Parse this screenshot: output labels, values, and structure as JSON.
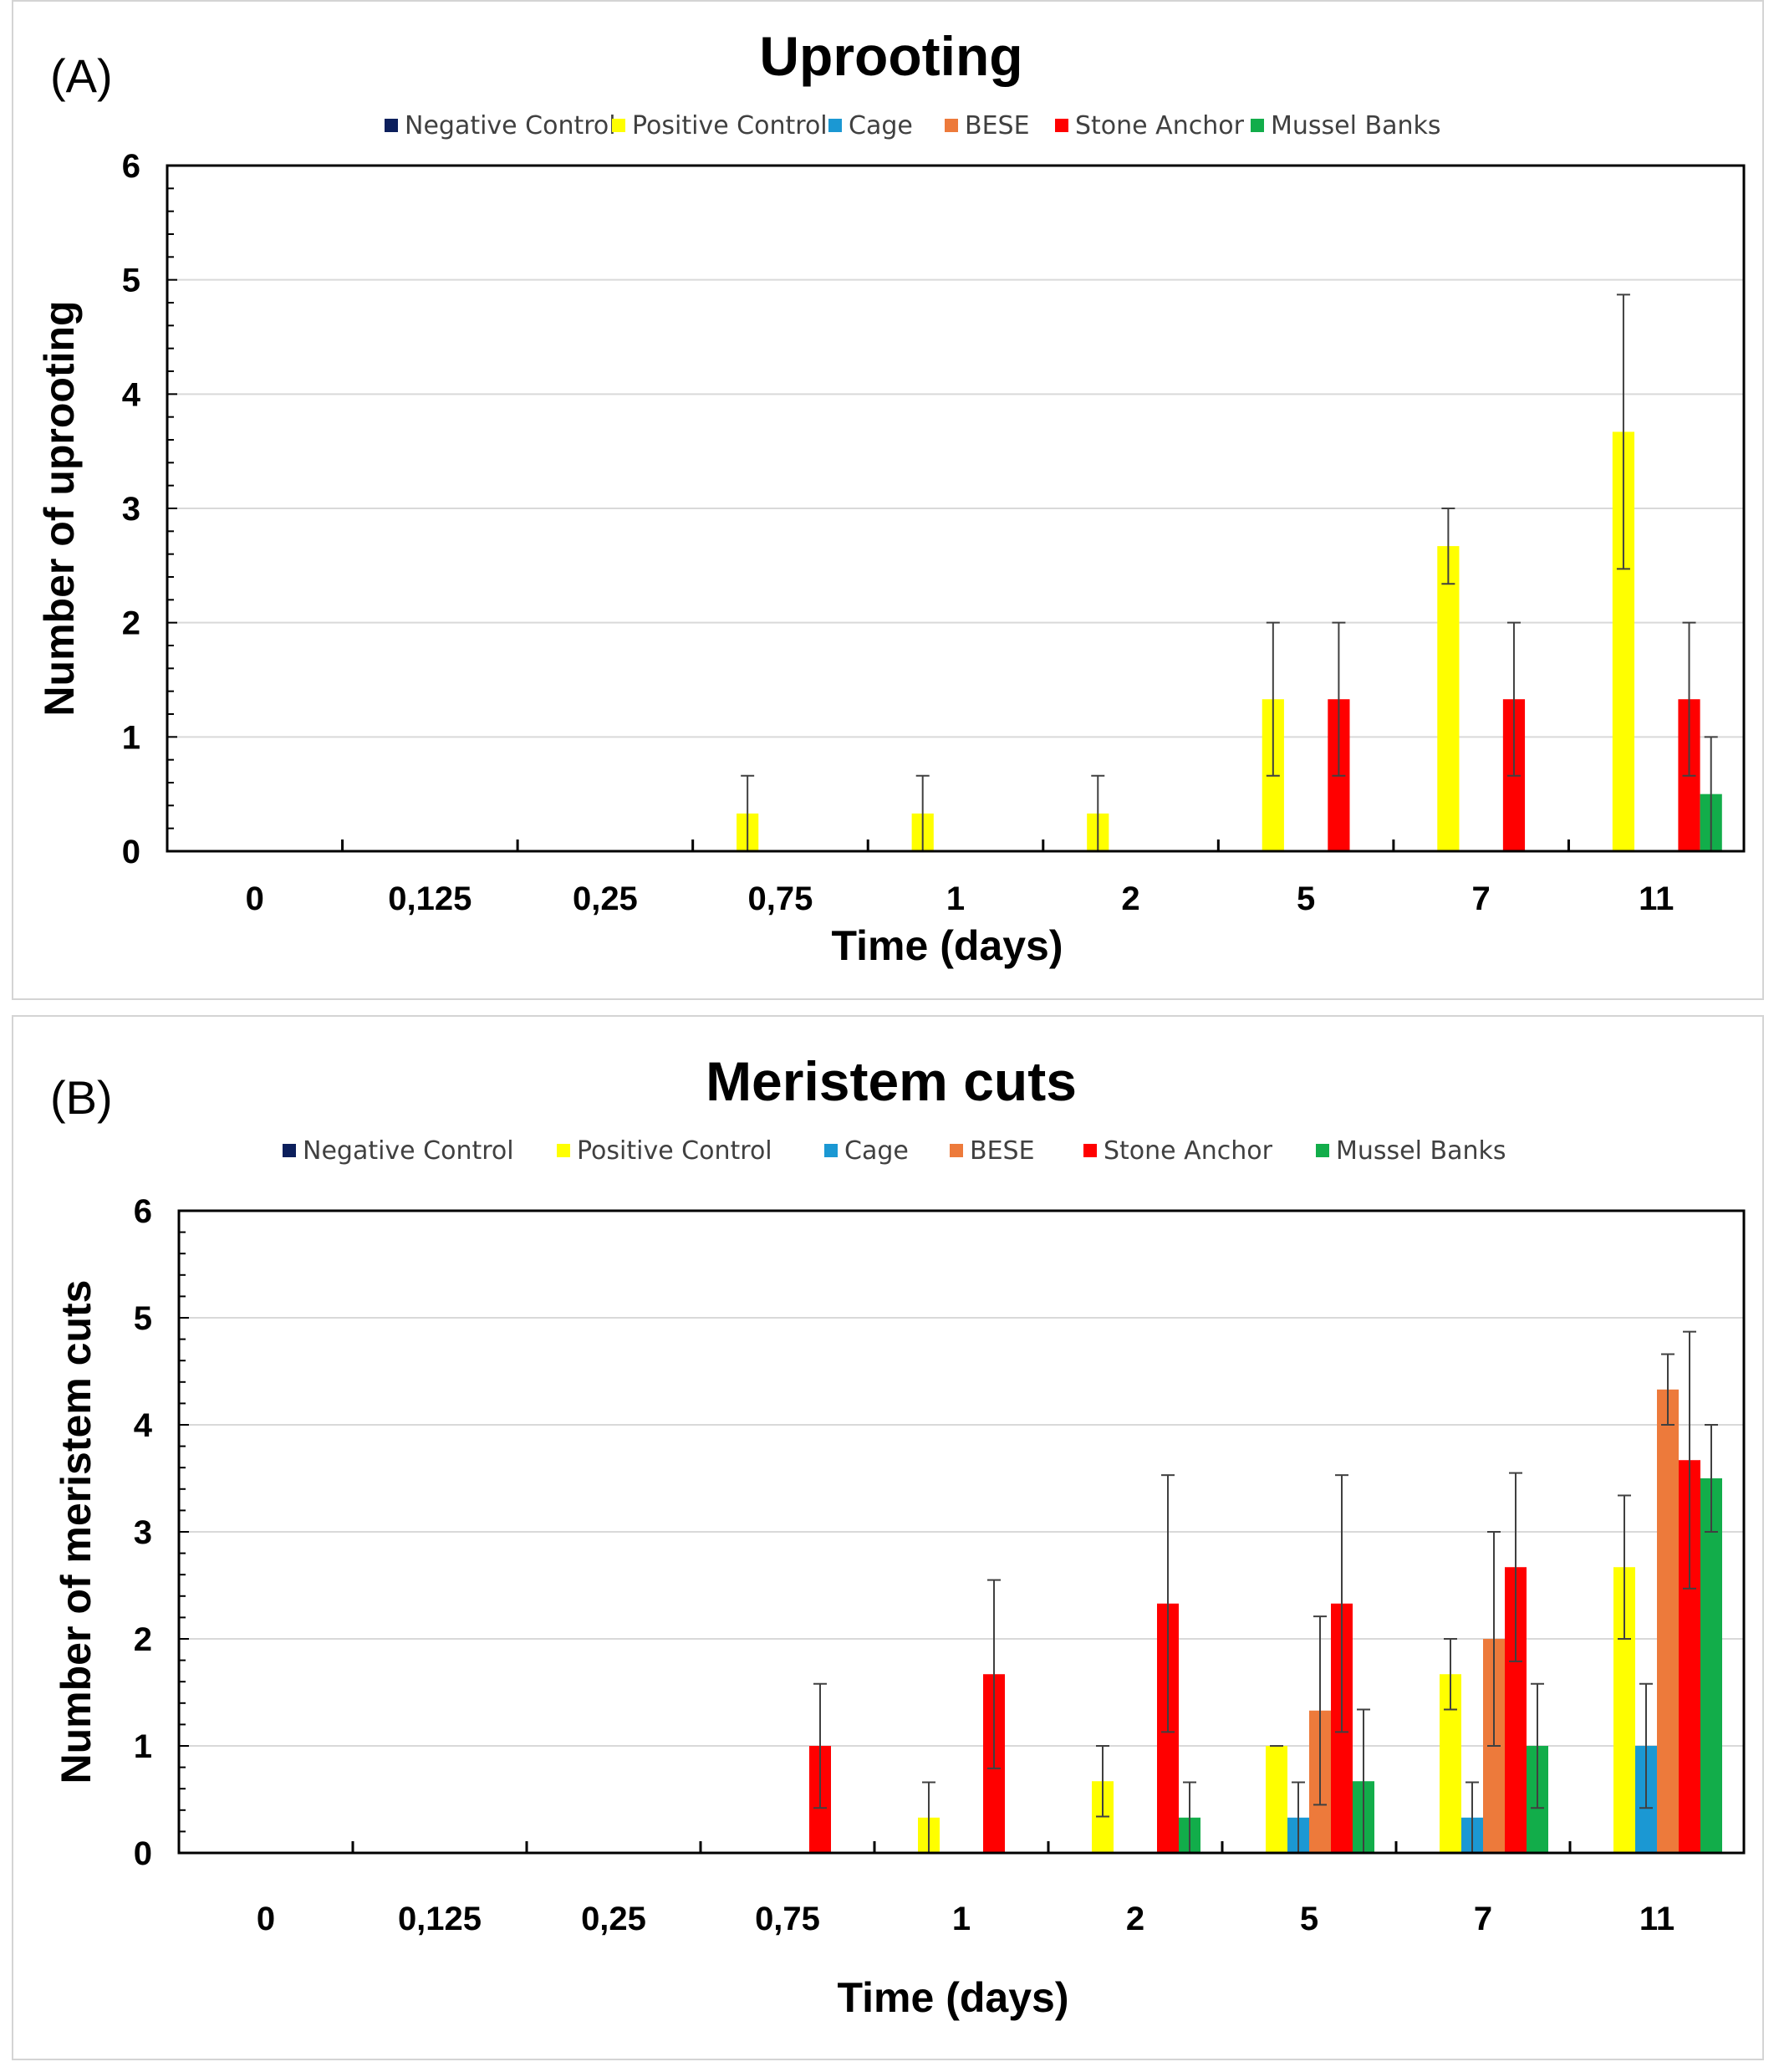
{
  "panels": [
    {
      "panel_label": "(A)",
      "chart_type": "bar"
    },
    {
      "panel_label": "(B)",
      "chart_type": "bar"
    }
  ],
  "chart_data": [
    {
      "type": "bar",
      "panel": "(A)",
      "title": "Uprooting",
      "xlabel": "Time (days)",
      "ylabel": "Number of uprooting",
      "ylim": [
        0,
        6
      ],
      "yticks": [
        "0",
        "1",
        "2",
        "3",
        "4",
        "5",
        "6"
      ],
      "grid": true,
      "legend_position": "top",
      "categories": [
        "0",
        "0,125",
        "0,25",
        "0,75",
        "1",
        "2",
        "5",
        "7",
        "11"
      ],
      "series": [
        {
          "name": "Negative Control",
          "color": "#0c1f5c",
          "values": [
            0,
            0,
            0,
            0,
            0,
            0,
            0,
            0,
            0
          ],
          "errors": [
            0,
            0,
            0,
            0,
            0,
            0,
            0,
            0,
            0
          ]
        },
        {
          "name": "Positive Control",
          "color": "#ffff00",
          "values": [
            0,
            0,
            0,
            0.33,
            0.33,
            0.33,
            1.33,
            2.67,
            3.67
          ],
          "errors": [
            0,
            0,
            0,
            0.33,
            0.33,
            0.33,
            0.67,
            0.33,
            1.2
          ]
        },
        {
          "name": "Cage",
          "color": "#1b98d3",
          "values": [
            0,
            0,
            0,
            0,
            0,
            0,
            0,
            0,
            0
          ],
          "errors": [
            0,
            0,
            0,
            0,
            0,
            0,
            0,
            0,
            0
          ]
        },
        {
          "name": "BESE",
          "color": "#ed7a3b",
          "values": [
            0,
            0,
            0,
            0,
            0,
            0,
            0,
            0,
            0
          ],
          "errors": [
            0,
            0,
            0,
            0,
            0,
            0,
            0,
            0,
            0
          ]
        },
        {
          "name": "Stone Anchor",
          "color": "#ff0000",
          "values": [
            0,
            0,
            0,
            0,
            0,
            0,
            1.33,
            1.33,
            1.33
          ],
          "errors": [
            0,
            0,
            0,
            0,
            0,
            0,
            0.67,
            0.67,
            0.67
          ]
        },
        {
          "name": "Mussel Banks",
          "color": "#12ad4a",
          "values": [
            0,
            0,
            0,
            0,
            0,
            0,
            0,
            0,
            0.5
          ],
          "errors": [
            0,
            0,
            0,
            0,
            0,
            0,
            0,
            0,
            0.5
          ]
        }
      ]
    },
    {
      "type": "bar",
      "panel": "(B)",
      "title": "Meristem cuts",
      "xlabel": "Time (days)",
      "ylabel": "Number of meristem cuts",
      "ylim": [
        0,
        6
      ],
      "yticks": [
        "0",
        "1",
        "2",
        "3",
        "4",
        "5",
        "6"
      ],
      "grid": true,
      "legend_position": "top",
      "categories": [
        "0",
        "0,125",
        "0,25",
        "0,75",
        "1",
        "2",
        "5",
        "7",
        "11"
      ],
      "series": [
        {
          "name": "Negative Control",
          "color": "#0c1f5c",
          "values": [
            0,
            0,
            0,
            0,
            0,
            0,
            0,
            0,
            0
          ],
          "errors": [
            0,
            0,
            0,
            0,
            0,
            0,
            0,
            0,
            0
          ]
        },
        {
          "name": "Positive Control",
          "color": "#ffff00",
          "values": [
            0,
            0,
            0,
            0,
            0.33,
            0.67,
            1,
            1.67,
            2.67
          ],
          "errors": [
            0,
            0,
            0,
            0,
            0.33,
            0.33,
            0,
            0.33,
            0.67
          ]
        },
        {
          "name": "Cage",
          "color": "#1b98d3",
          "values": [
            0,
            0,
            0,
            0,
            0,
            0,
            0.33,
            0.33,
            1
          ],
          "errors": [
            0,
            0,
            0,
            0,
            0,
            0,
            0.33,
            0.33,
            0.58
          ]
        },
        {
          "name": "BESE",
          "color": "#ed7a3b",
          "values": [
            0,
            0,
            0,
            0,
            0,
            0,
            1.33,
            2,
            4.33
          ],
          "errors": [
            0,
            0,
            0,
            0,
            0,
            0,
            0.88,
            1,
            0.33
          ]
        },
        {
          "name": "Stone Anchor",
          "color": "#ff0000",
          "values": [
            0,
            0,
            0,
            1,
            1.67,
            2.33,
            2.33,
            2.67,
            3.67
          ],
          "errors": [
            0,
            0,
            0,
            0.58,
            0.88,
            1.2,
            1.2,
            0.88,
            1.2
          ]
        },
        {
          "name": "Mussel Banks",
          "color": "#12ad4a",
          "values": [
            0,
            0,
            0,
            0,
            0,
            0.33,
            0.67,
            1,
            3.5
          ],
          "errors": [
            0,
            0,
            0,
            0,
            0,
            0.33,
            0.67,
            0.58,
            0.5
          ]
        }
      ]
    }
  ]
}
